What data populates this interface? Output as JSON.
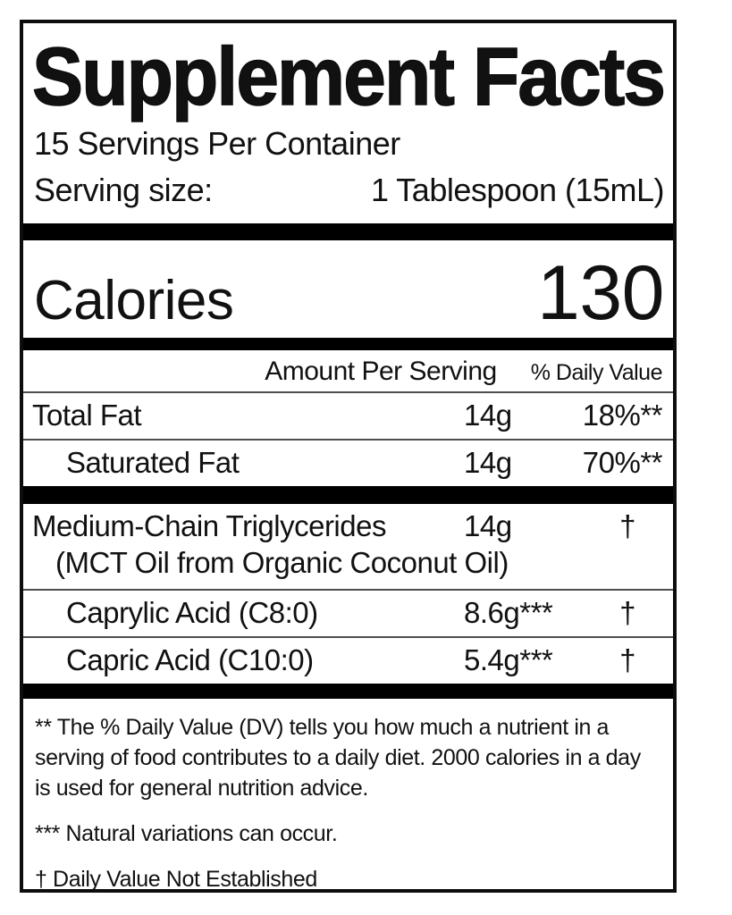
{
  "label": {
    "title": "Supplement Facts",
    "servings_per_container": "15 Servings Per Container",
    "serving_size": {
      "label": "Serving size:",
      "value": "1 Tablespoon (15mL)"
    },
    "calories": {
      "label": "Calories",
      "value": "130"
    },
    "columns": {
      "amount_header": "Amount Per Serving",
      "daily_value_header": "% Daily Value"
    },
    "rows": [
      {
        "name": "Total Fat",
        "amount": "14g",
        "daily_value": "18%**"
      },
      {
        "name": "Saturated Fat",
        "amount": "14g",
        "daily_value": "70%**"
      },
      {
        "name": "Medium-Chain Triglycerides",
        "name_line2": "(MCT Oil from Organic Coconut Oil)",
        "amount": "14g",
        "daily_value": "†"
      },
      {
        "name": "Caprylic Acid (C8:0)",
        "amount": "8.6g***",
        "daily_value": "†"
      },
      {
        "name": "Capric Acid (C10:0)",
        "amount": "5.4g***",
        "daily_value": "†"
      }
    ],
    "footnotes": [
      "** The % Daily Value (DV) tells you how much a nutrient in a serving of food contributes to a daily diet. 2000 calories in a day is used for general nutrition advice.",
      "*** Natural variations can occur.",
      "† Daily Value Not Established"
    ],
    "colors": {
      "text": "#111111",
      "bar": "#000000",
      "rule": "#4f4f4f",
      "background": "#ffffff"
    }
  }
}
